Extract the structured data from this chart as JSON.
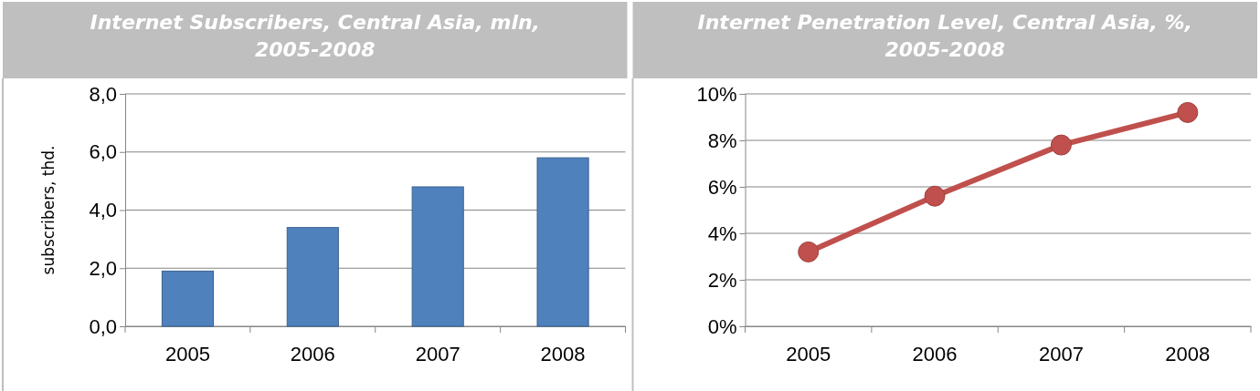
{
  "chart_data": [
    {
      "type": "bar",
      "title": "Internet Subscribers, Central Asia, mln, 2005-2008",
      "ylabel": "subscribers, thd.",
      "categories": [
        "2005",
        "2006",
        "2007",
        "2008"
      ],
      "values": [
        1.9,
        3.4,
        4.8,
        5.8
      ],
      "color": "#4f81bd",
      "ylim": [
        0,
        8
      ],
      "yticks": [
        {
          "value": 0,
          "label": "0,0"
        },
        {
          "value": 2,
          "label": "2,0"
        },
        {
          "value": 4,
          "label": "4,0"
        },
        {
          "value": 6,
          "label": "6,0"
        },
        {
          "value": 8,
          "label": "8,0"
        }
      ],
      "grid": "y"
    },
    {
      "type": "line",
      "title": "Internet Penetration Level, Central Asia, %, 2005-2008",
      "categories": [
        "2005",
        "2006",
        "2007",
        "2008"
      ],
      "values": [
        3.2,
        5.6,
        7.8,
        9.2
      ],
      "color": "#c0504d",
      "marker": "circle",
      "line_style": "solid",
      "ylim": [
        0,
        10
      ],
      "yticks": [
        {
          "value": 0,
          "label": "0%"
        },
        {
          "value": 2,
          "label": "2%"
        },
        {
          "value": 4,
          "label": "4%"
        },
        {
          "value": 6,
          "label": "6%"
        },
        {
          "value": 8,
          "label": "8%"
        },
        {
          "value": 10,
          "label": "10%"
        }
      ],
      "grid": "y"
    }
  ]
}
